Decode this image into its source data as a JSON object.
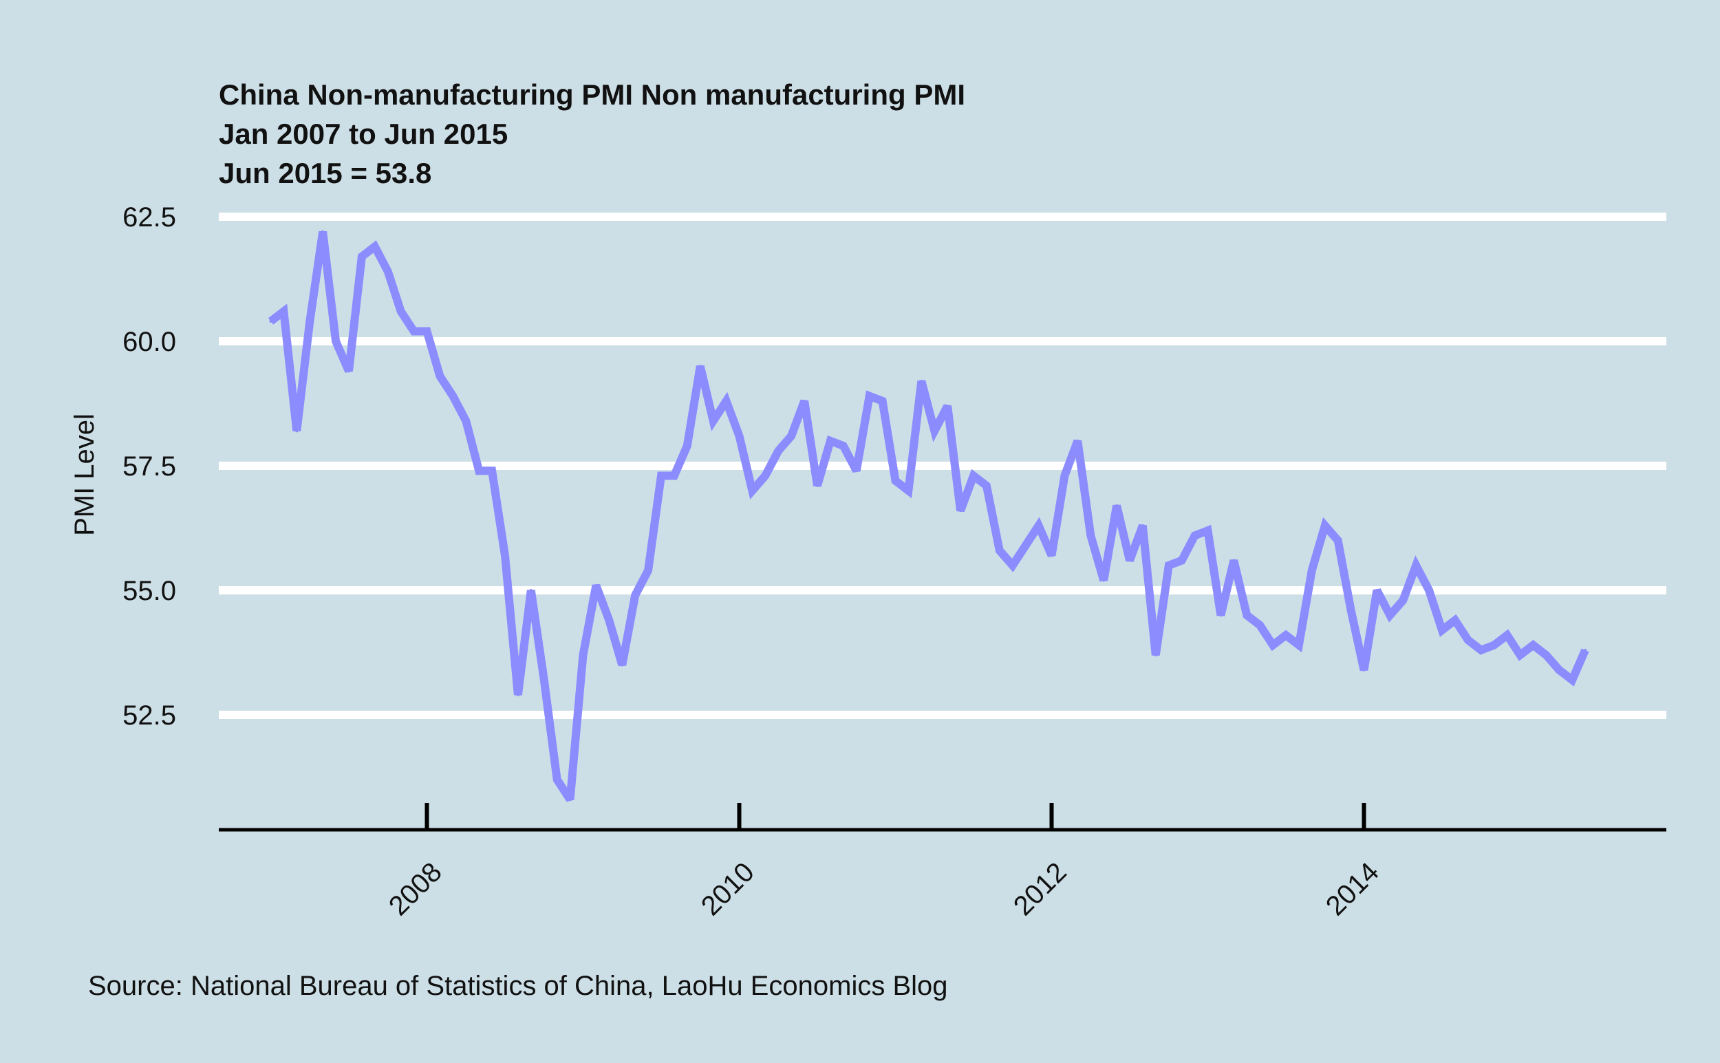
{
  "chart_data": {
    "type": "line",
    "title": "China Non-manufacturing PMI Non manufacturing PMI",
    "subtitle": "Jan 2007 to Jun 2015",
    "annotation": "Jun 2015 = 53.8",
    "ylabel": "PMI Level",
    "xlabel": "",
    "source": "Source: National Bureau of Statistics of China, LaoHu Economics Blog",
    "xlim": [
      2006.9,
      2016.2
    ],
    "ylim": [
      50.0,
      62.5
    ],
    "y_ticks": [
      {
        "value": 52.5,
        "label": "52.5"
      },
      {
        "value": 55.0,
        "label": "55.0"
      },
      {
        "value": 57.5,
        "label": "57.5"
      },
      {
        "value": 60.0,
        "label": "60.0"
      },
      {
        "value": 62.5,
        "label": "62.5"
      }
    ],
    "x_ticks": [
      {
        "value": 2008,
        "label": "2008"
      },
      {
        "value": 2010,
        "label": "2010"
      },
      {
        "value": 2012,
        "label": "2012"
      },
      {
        "value": 2014,
        "label": "2014"
      }
    ],
    "grid": "horizontal",
    "line_color": "#8c8cff",
    "series": [
      {
        "x": [
          "2007-01",
          "2007-02",
          "2007-03",
          "2007-04",
          "2007-05",
          "2007-06",
          "2007-07",
          "2007-08",
          "2007-09",
          "2007-10",
          "2007-11",
          "2007-12",
          "2008-01",
          "2008-02",
          "2008-03",
          "2008-04",
          "2008-05",
          "2008-06",
          "2008-07",
          "2008-08",
          "2008-09",
          "2008-10",
          "2008-11",
          "2008-12",
          "2009-01",
          "2009-02",
          "2009-03",
          "2009-04",
          "2009-05",
          "2009-06",
          "2009-07",
          "2009-08",
          "2009-09",
          "2009-10",
          "2009-11",
          "2009-12",
          "2010-01",
          "2010-02",
          "2010-03",
          "2010-04",
          "2010-05",
          "2010-06",
          "2010-07",
          "2010-08",
          "2010-09",
          "2010-10",
          "2010-11",
          "2010-12",
          "2011-01",
          "2011-02",
          "2011-03",
          "2011-04",
          "2011-05",
          "2011-06",
          "2011-07",
          "2011-08",
          "2011-09",
          "2011-10",
          "2011-11",
          "2011-12",
          "2012-01",
          "2012-02",
          "2012-03",
          "2012-04",
          "2012-05",
          "2012-06",
          "2012-07",
          "2012-08",
          "2012-09",
          "2012-10",
          "2012-11",
          "2012-12",
          "2013-01",
          "2013-02",
          "2013-03",
          "2013-04",
          "2013-05",
          "2013-06",
          "2013-07",
          "2013-08",
          "2013-09",
          "2013-10",
          "2013-11",
          "2013-12",
          "2014-01",
          "2014-02",
          "2014-03",
          "2014-04",
          "2014-05",
          "2014-06",
          "2014-07",
          "2014-08",
          "2014-09",
          "2014-10",
          "2014-11",
          "2014-12",
          "2015-01",
          "2015-02",
          "2015-03",
          "2015-04",
          "2015-05",
          "2015-06"
        ],
        "values": [
          60.4,
          60.6,
          58.2,
          60.4,
          62.2,
          60.0,
          59.4,
          61.7,
          61.9,
          61.4,
          60.6,
          60.2,
          60.2,
          59.3,
          58.9,
          58.4,
          57.4,
          57.4,
          55.7,
          52.9,
          55.0,
          53.2,
          51.2,
          50.8,
          53.7,
          55.1,
          54.4,
          53.5,
          54.9,
          55.4,
          57.3,
          57.3,
          57.9,
          59.5,
          58.4,
          58.8,
          58.1,
          57.0,
          57.3,
          57.8,
          58.1,
          58.8,
          57.1,
          58.0,
          57.9,
          57.4,
          58.9,
          58.8,
          57.2,
          57.0,
          59.2,
          58.2,
          58.7,
          56.6,
          57.3,
          57.1,
          55.8,
          55.5,
          55.9,
          56.3,
          55.7,
          57.3,
          58.0,
          56.1,
          55.2,
          56.7,
          55.6,
          56.3,
          53.7,
          55.5,
          55.6,
          56.1,
          56.2,
          54.5,
          55.6,
          54.5,
          54.3,
          53.9,
          54.1,
          53.9,
          55.4,
          56.3,
          56.0,
          54.6,
          53.4,
          55.0,
          54.5,
          54.8,
          55.5,
          55.0,
          54.2,
          54.4,
          54.0,
          53.8,
          53.9,
          54.1,
          53.7,
          53.9,
          53.7,
          53.4,
          53.2,
          53.8
        ]
      }
    ]
  }
}
